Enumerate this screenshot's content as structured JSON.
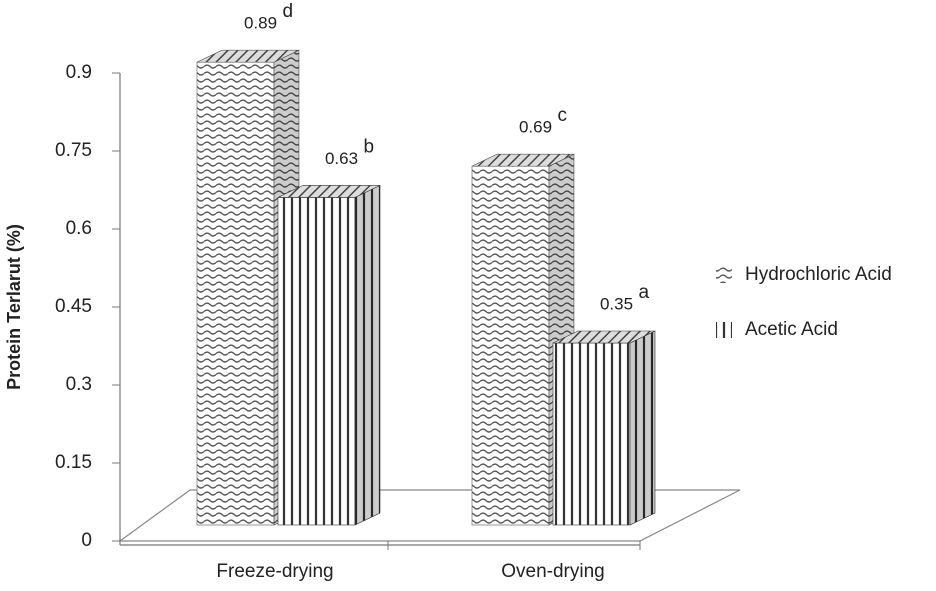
{
  "chart_data": {
    "type": "bar3d",
    "y_label": "Protein Terlarut (%)",
    "categories": [
      "Freeze-drying",
      "Oven-drying"
    ],
    "series": [
      {
        "name": "Hydrochloric Acid",
        "color": "#555555",
        "pattern": "wave",
        "values": [
          0.89,
          0.69
        ],
        "letters": [
          "d",
          "c"
        ]
      },
      {
        "name": "Acetic Acid",
        "color": "#333333",
        "pattern": "vertical",
        "values": [
          0.63,
          0.35
        ],
        "letters": [
          "b",
          "a"
        ]
      }
    ],
    "ylim": [
      0,
      0.9
    ],
    "yticks": [
      0,
      0.15,
      0.3,
      0.45,
      0.6,
      0.75,
      0.9
    ]
  }
}
